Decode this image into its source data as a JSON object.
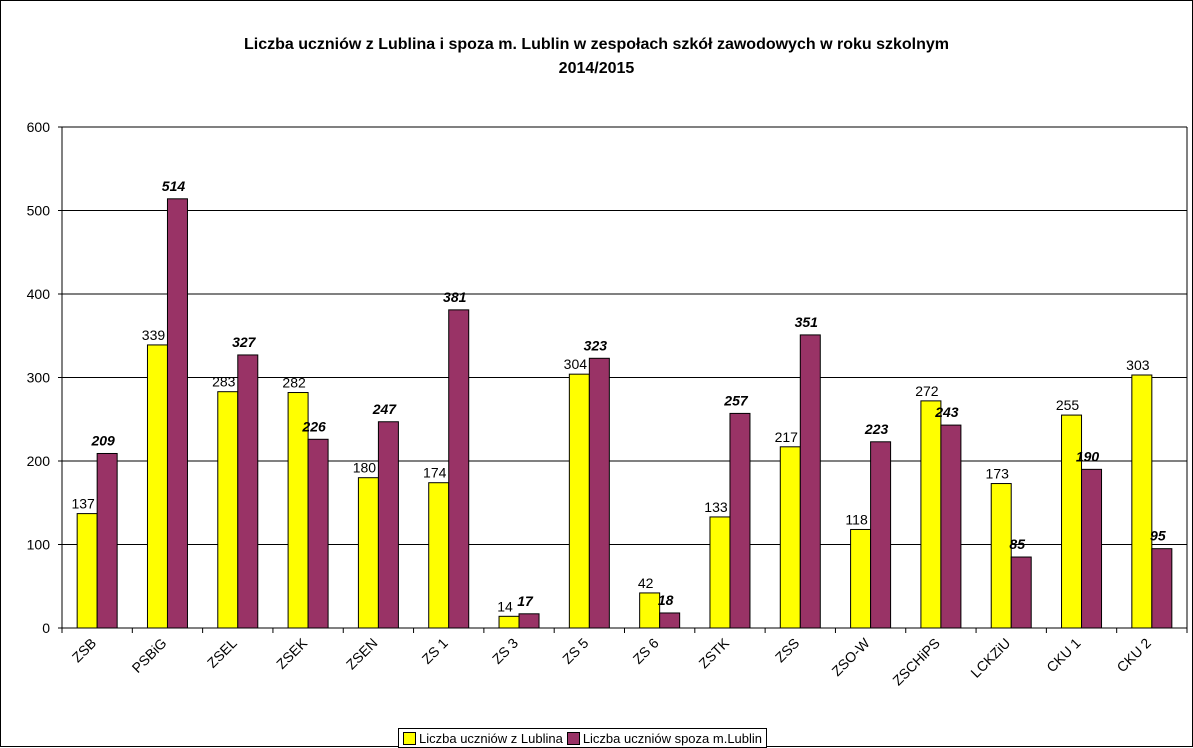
{
  "chart_data": {
    "type": "bar",
    "title_line1": "Liczba uczniów z Lublina i spoza m. Lublin w zespołach szkół zawodowych w roku szkolnym",
    "title_line2": "2014/2015",
    "categories": [
      "ZSB",
      "PSBiG",
      "ZSEL",
      "ZSEK",
      "ZSEN",
      "ZS 1",
      "ZS 3",
      "ZS 5",
      "ZS 6",
      "ZSTK",
      "ZSS",
      "ZSO-W",
      "ZSCHiPS",
      "LCKZiU",
      "CKU 1",
      "CKU 2"
    ],
    "series": [
      {
        "name": "Liczba uczniów z Lublina",
        "color": "#ffff00",
        "values": [
          137,
          339,
          283,
          282,
          180,
          174,
          14,
          304,
          42,
          133,
          217,
          118,
          272,
          173,
          255,
          303
        ]
      },
      {
        "name": "Liczba uczniów spoza m.Lublin",
        "color": "#993366",
        "values": [
          209,
          514,
          327,
          226,
          247,
          381,
          17,
          323,
          18,
          257,
          351,
          223,
          243,
          85,
          190,
          95
        ]
      }
    ],
    "ylim": [
      0,
      600
    ],
    "yticks": [
      0,
      100,
      200,
      300,
      400,
      500,
      600
    ],
    "grid": true,
    "legend": "bottom"
  }
}
